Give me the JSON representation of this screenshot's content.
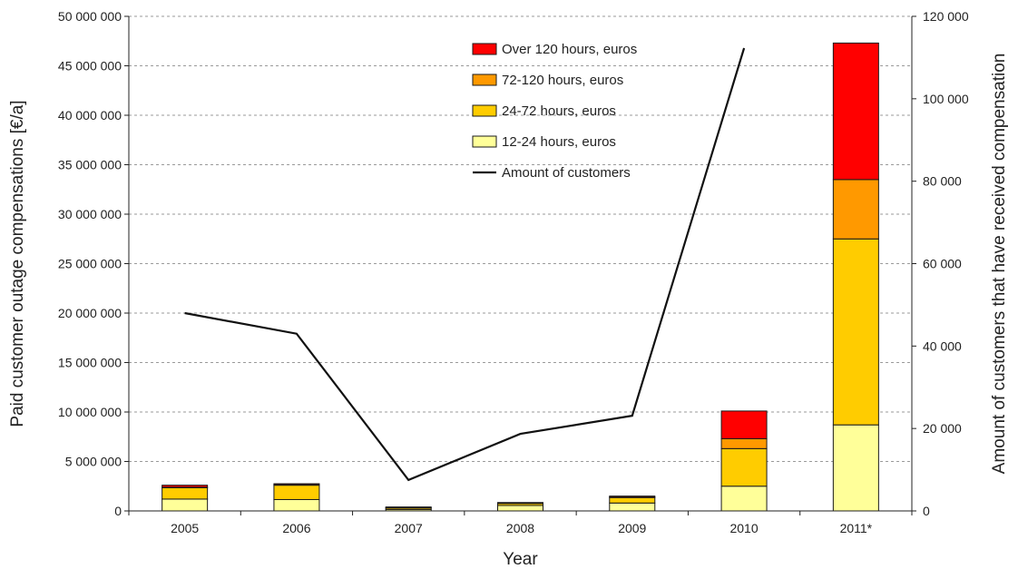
{
  "chart_data": {
    "type": "bar",
    "stacked": true,
    "categories": [
      "2005",
      "2006",
      "2007",
      "2008",
      "2009",
      "2010",
      "2011*"
    ],
    "series": [
      {
        "name": "12-24 hours, euros",
        "color": "#ffff99",
        "values": [
          1200000,
          1150000,
          150000,
          550000,
          800000,
          2500000,
          8700000
        ]
      },
      {
        "name": "24-72 hours, euros",
        "color": "#ffcc00",
        "values": [
          1150000,
          1450000,
          150000,
          200000,
          550000,
          3800000,
          18800000
        ]
      },
      {
        "name": "72-120 hours, euros",
        "color": "#ff9900",
        "values": [
          50000,
          50000,
          30000,
          30000,
          50000,
          1000000,
          6000000
        ]
      },
      {
        "name": "Over 120 hours, euros",
        "color": "#ff0000",
        "values": [
          200000,
          100000,
          70000,
          70000,
          100000,
          2800000,
          13800000
        ]
      }
    ],
    "line_series": {
      "name": "Amount of customers",
      "color": "#111111",
      "axis": "right",
      "values": [
        48000,
        43000,
        7500,
        18700,
        23100,
        112300,
        null
      ]
    },
    "xlabel": "Year",
    "ylabel": "Paid customer outage compensations [€/a]",
    "ylabel_right": "Amount of customers that have received compensation",
    "ylim": [
      0,
      50000000
    ],
    "ylim_right": [
      0,
      120000
    ],
    "yticks": [
      0,
      5000000,
      10000000,
      15000000,
      20000000,
      25000000,
      30000000,
      35000000,
      40000000,
      45000000,
      50000000
    ],
    "ytick_labels": [
      "0",
      "5 000 000",
      "10 000 000",
      "15 000 000",
      "20 000 000",
      "25 000 000",
      "30 000 000",
      "35 000 000",
      "40 000 000",
      "45 000 000",
      "50 000 000"
    ],
    "yticks_right": [
      0,
      20000,
      40000,
      60000,
      80000,
      100000,
      120000
    ],
    "ytick_labels_right": [
      "0",
      "20 000",
      "40 000",
      "60 000",
      "80 000",
      "100 000",
      "120 000"
    ],
    "grid": true,
    "legend_position": "top-center",
    "legend_order": [
      "Over 120 hours, euros",
      "72-120 hours, euros",
      "24-72 hours, euros",
      "12-24 hours, euros",
      "Amount of customers"
    ]
  }
}
